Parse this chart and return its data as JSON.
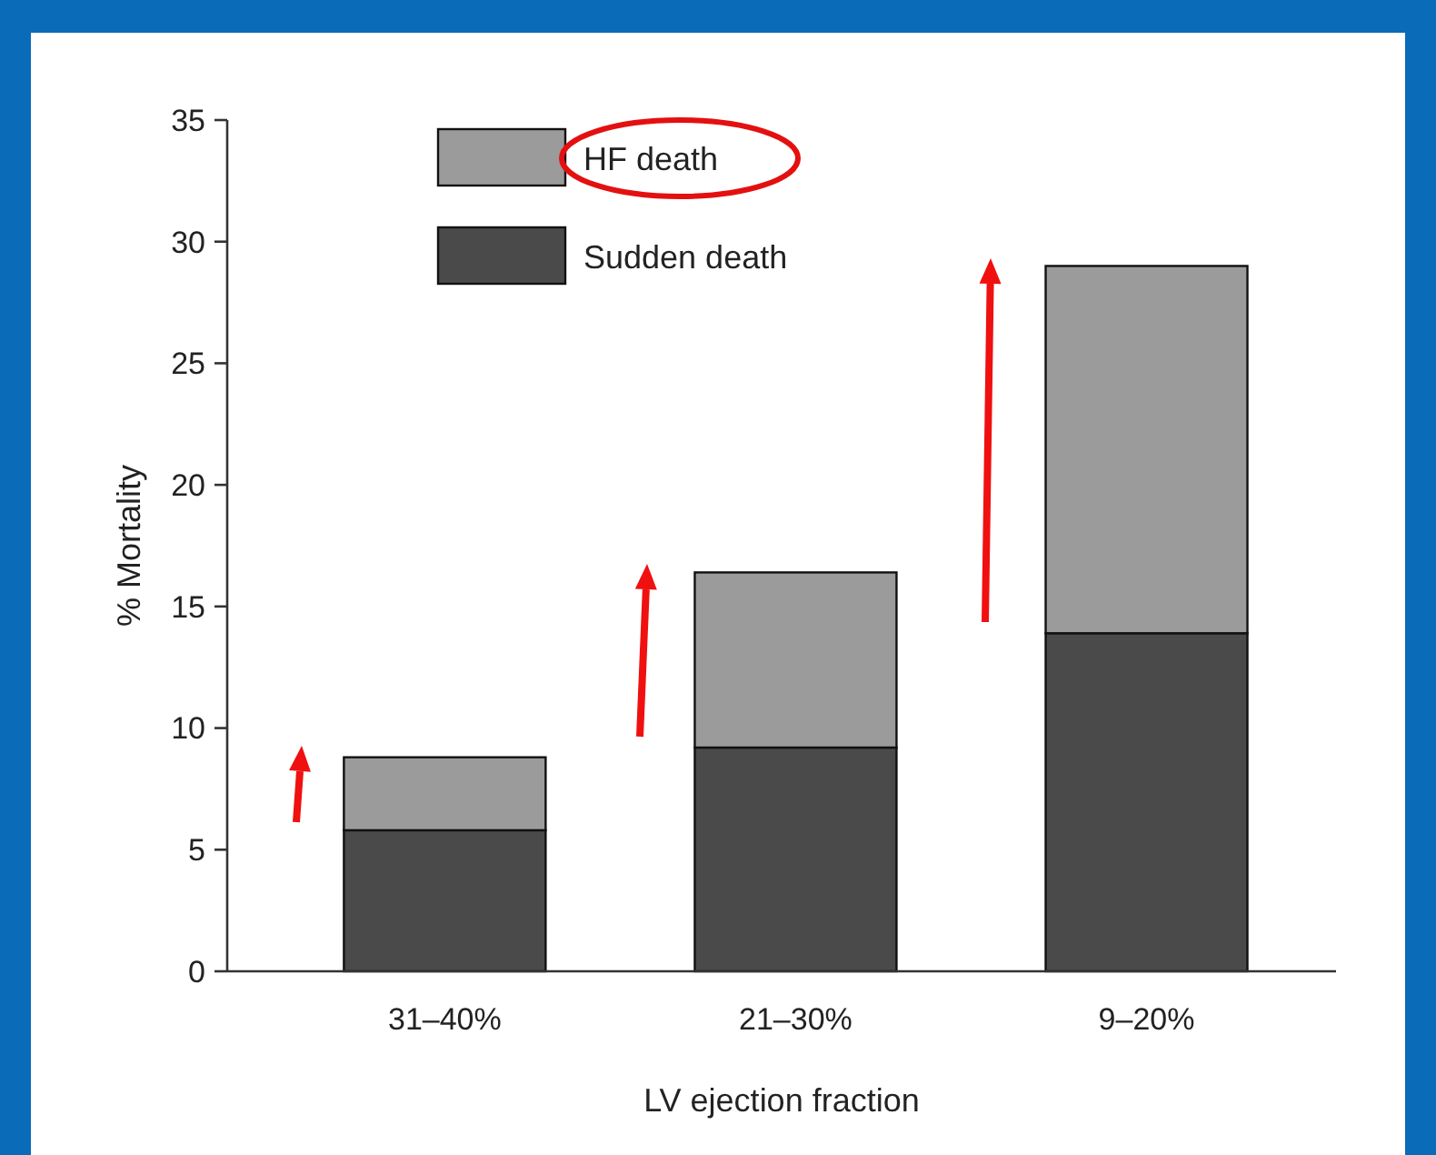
{
  "chart_data": {
    "type": "bar",
    "stacked": true,
    "xlabel": "LV ejection fraction",
    "ylabel": "% Mortality",
    "categories": [
      "31–40%",
      "21–30%",
      "9–20%"
    ],
    "series": [
      {
        "name": "Sudden death",
        "color": "#4a4a4a",
        "values": [
          5.8,
          9.2,
          13.9
        ]
      },
      {
        "name": "HF death",
        "color": "#9b9b9b",
        "values": [
          3.0,
          7.2,
          15.1
        ]
      }
    ],
    "ylim": [
      0,
      35
    ],
    "yticks": [
      0,
      5,
      10,
      15,
      20,
      25,
      30,
      35
    ],
    "grid": false,
    "legend": "top left"
  }
}
